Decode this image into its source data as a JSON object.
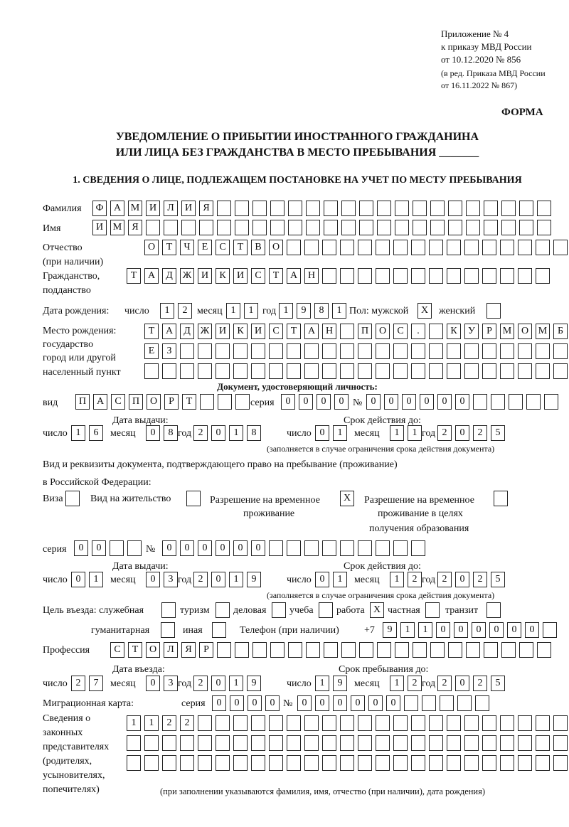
{
  "header": {
    "line1": "Приложение № 4",
    "line2": "к приказу МВД России",
    "line3": "от 10.12.2020 № 856",
    "line4": "(в ред. Приказа МВД России",
    "line5": "от 16.11.2022 № 867)",
    "form_label": "ФОРМА"
  },
  "title": {
    "line1": "УВЕДОМЛЕНИЕ О ПРИБЫТИИ ИНОСТРАННОГО ГРАЖДАНИНА",
    "line2": "ИЛИ ЛИЦА БЕЗ ГРАЖДАНСТВА В МЕСТО ПРЕБЫВАНИЯ _______"
  },
  "section1": {
    "heading": "1. СВЕДЕНИЯ О ЛИЦЕ, ПОДЛЕЖАЩЕМ ПОСТАНОВКЕ НА УЧЕТ ПО МЕСТУ ПРЕБЫВАНИЯ",
    "surname": {
      "label": "Фамилия",
      "boxes": [
        "Ф",
        "А",
        "М",
        "И",
        "Л",
        "И",
        "Я",
        "",
        "",
        "",
        "",
        "",
        "",
        "",
        "",
        "",
        "",
        "",
        "",
        "",
        "",
        "",
        "",
        "",
        "",
        ""
      ]
    },
    "name": {
      "label": "Имя",
      "boxes": [
        "И",
        "М",
        "Я",
        "",
        "",
        "",
        "",
        "",
        "",
        "",
        "",
        "",
        "",
        "",
        "",
        "",
        "",
        "",
        "",
        "",
        "",
        "",
        "",
        "",
        "",
        ""
      ]
    },
    "patronymic": {
      "label": "Отчество",
      "label2": "(при наличии)",
      "boxes": [
        "О",
        "Т",
        "Ч",
        "Е",
        "С",
        "Т",
        "В",
        "О",
        "",
        "",
        "",
        "",
        "",
        "",
        "",
        "",
        "",
        "",
        "",
        "",
        "",
        "",
        "",
        ""
      ]
    },
    "citizenship": {
      "label": "Гражданство,",
      "label2": "подданство",
      "boxes": [
        "Т",
        "А",
        "Д",
        "Ж",
        "И",
        "К",
        "И",
        "С",
        "Т",
        "А",
        "Н",
        "",
        "",
        "",
        "",
        "",
        "",
        "",
        "",
        "",
        "",
        "",
        "",
        ""
      ]
    },
    "birth_date": {
      "label": "Дата рождения:",
      "day_label": "число",
      "day": [
        "1",
        "2"
      ],
      "month_label": "месяц",
      "month": [
        "1",
        "1"
      ],
      "year_label": "год",
      "year": [
        "1",
        "9",
        "8",
        "1"
      ],
      "sex_label": "Пол: мужской",
      "male": [
        "X"
      ],
      "female_label": "женский",
      "female": [
        ""
      ]
    },
    "birth_place": {
      "label1": "Место рождения:",
      "label2": "государство",
      "label3": "город или другой",
      "label4": "населенный пункт",
      "row1": [
        "Т",
        "А",
        "Д",
        "Ж",
        "И",
        "К",
        "И",
        "С",
        "Т",
        "А",
        "Н",
        "",
        "П",
        "О",
        "С",
        ".",
        "",
        "К",
        "У",
        "Р",
        "М",
        "О",
        "М",
        "Б"
      ],
      "row2": [
        "Е",
        "З",
        "",
        "",
        "",
        "",
        "",
        "",
        "",
        "",
        "",
        "",
        "",
        "",
        "",
        "",
        "",
        "",
        "",
        "",
        "",
        "",
        "",
        ""
      ],
      "row3": [
        "",
        "",
        "",
        "",
        "",
        "",
        "",
        "",
        "",
        "",
        "",
        "",
        "",
        "",
        "",
        "",
        "",
        "",
        "",
        "",
        "",
        "",
        "",
        ""
      ]
    },
    "id_doc": {
      "heading": "Документ, удостоверяющий личность:",
      "type_label": "вид",
      "type": [
        "П",
        "А",
        "С",
        "П",
        "О",
        "Р",
        "Т",
        "",
        "",
        ""
      ],
      "series_label": "серия",
      "series": [
        "0",
        "0",
        "0",
        "0"
      ],
      "number_label": "№",
      "number": [
        "0",
        "0",
        "0",
        "0",
        "0",
        "0",
        "",
        "",
        "",
        "",
        ""
      ],
      "issue_label": "Дата выдачи:",
      "valid_label": "Срок действия до:",
      "issue": {
        "day_label": "число",
        "day": [
          "1",
          "6"
        ],
        "month_label": "месяц",
        "month": [
          "0",
          "8"
        ],
        "year_label": "год",
        "year": [
          "2",
          "0",
          "1",
          "8"
        ]
      },
      "valid": {
        "day_label": "число",
        "day": [
          "0",
          "1"
        ],
        "month_label": "месяц",
        "month": [
          "1",
          "1"
        ],
        "year_label": "год",
        "year": [
          "2",
          "0",
          "2",
          "5"
        ]
      },
      "note": "(заполняется в случае ограничения срока действия документа)"
    },
    "stay_doc": {
      "label1": "Вид и реквизиты документа, подтверждающего право на пребывание (проживание)",
      "label2": "в Российской Федерации:",
      "visa_label": "Виза",
      "visa": [
        ""
      ],
      "residence_label": "Вид на жительство",
      "residence": [
        ""
      ],
      "temp_label1": "Разрешение на временное",
      "temp_label2": "проживание",
      "temp": [
        "X"
      ],
      "edu_label1": "Разрешение на временное",
      "edu_label2": "проживание в целях",
      "edu_label3": "получения образования",
      "edu": [
        ""
      ],
      "series_label": "серия",
      "series": [
        "0",
        "0",
        "",
        ""
      ],
      "number_label": "№",
      "number": [
        "0",
        "0",
        "0",
        "0",
        "0",
        "0",
        "",
        "",
        "",
        "",
        "",
        "",
        "",
        "",
        ""
      ],
      "issue_label": "Дата выдачи:",
      "valid_label": "Срок действия до:",
      "issue": {
        "day_label": "число",
        "day": [
          "0",
          "1"
        ],
        "month_label": "месяц",
        "month": [
          "0",
          "3"
        ],
        "year_label": "год",
        "year": [
          "2",
          "0",
          "1",
          "9"
        ]
      },
      "valid": {
        "day_label": "число",
        "day": [
          "0",
          "1"
        ],
        "month_label": "месяц",
        "month": [
          "1",
          "2"
        ],
        "year_label": "год",
        "year": [
          "2",
          "0",
          "2",
          "5"
        ]
      },
      "note": "(заполняется в случае ограничения срока действия документа)"
    },
    "purpose": {
      "label": "Цель въезда: служебная",
      "service": [
        ""
      ],
      "tourism_label": "туризм",
      "tourism": [
        ""
      ],
      "business_label": "деловая",
      "business": [
        ""
      ],
      "study_label": "учеба",
      "study": [
        ""
      ],
      "work_label": "работа",
      "work": [
        "X"
      ],
      "private_label": "частная",
      "private": [
        ""
      ],
      "transit_label": "транзит",
      "transit": [
        ""
      ],
      "humanitarian_label": "гуманитарная",
      "humanitarian": [
        ""
      ],
      "other_label": "иная",
      "other": [
        ""
      ]
    },
    "phone": {
      "label": "Телефон (при наличии)",
      "prefix": "+7",
      "boxes": [
        "9",
        "1",
        "1",
        "0",
        "0",
        "0",
        "0",
        "0",
        "0",
        ""
      ]
    },
    "profession": {
      "label": "Профессия",
      "boxes": [
        "С",
        "Т",
        "О",
        "Л",
        "Я",
        "Р",
        "",
        "",
        "",
        "",
        "",
        "",
        "",
        "",
        "",
        "",
        "",
        "",
        "",
        "",
        "",
        "",
        "",
        "",
        ""
      ]
    },
    "entry": {
      "entry_label": "Дата въезда:",
      "stay_label": "Срок пребывания до:",
      "entry": {
        "day_label": "число",
        "day": [
          "2",
          "7"
        ],
        "month_label": "месяц",
        "month": [
          "0",
          "3"
        ],
        "year_label": "год",
        "year": [
          "2",
          "0",
          "1",
          "9"
        ]
      },
      "stay": {
        "day_label": "число",
        "day": [
          "1",
          "9"
        ],
        "month_label": "месяц",
        "month": [
          "1",
          "2"
        ],
        "year_label": "год",
        "year": [
          "2",
          "0",
          "2",
          "5"
        ]
      }
    },
    "migration_card": {
      "label": "Миграционная карта:",
      "series_label": "серия",
      "series": [
        "0",
        "0",
        "0",
        "0"
      ],
      "number_label": "№",
      "number": [
        "0",
        "0",
        "0",
        "0",
        "0",
        "0",
        "",
        "",
        "",
        "",
        ""
      ]
    },
    "representatives": {
      "label1": "Сведения о",
      "label2": "законных",
      "label3": "представителях",
      "label4": "(родителях,",
      "label5": "усыновителях,",
      "label6": "попечителях)",
      "row1": [
        "1",
        "1",
        "2",
        "2",
        "",
        "",
        "",
        "",
        "",
        "",
        "",
        "",
        "",
        "",
        "",
        "",
        "",
        "",
        "",
        "",
        "",
        "",
        "",
        "",
        ""
      ],
      "row2": [
        "",
        "",
        "",
        "",
        "",
        "",
        "",
        "",
        "",
        "",
        "",
        "",
        "",
        "",
        "",
        "",
        "",
        "",
        "",
        "",
        "",
        "",
        "",
        "",
        ""
      ],
      "row3": [
        "",
        "",
        "",
        "",
        "",
        "",
        "",
        "",
        "",
        "",
        "",
        "",
        "",
        "",
        "",
        "",
        "",
        "",
        "",
        "",
        "",
        "",
        "",
        "",
        ""
      ],
      "note": "(при заполнении указываются фамилия, имя, отчество (при наличии), дата рождения)"
    }
  }
}
